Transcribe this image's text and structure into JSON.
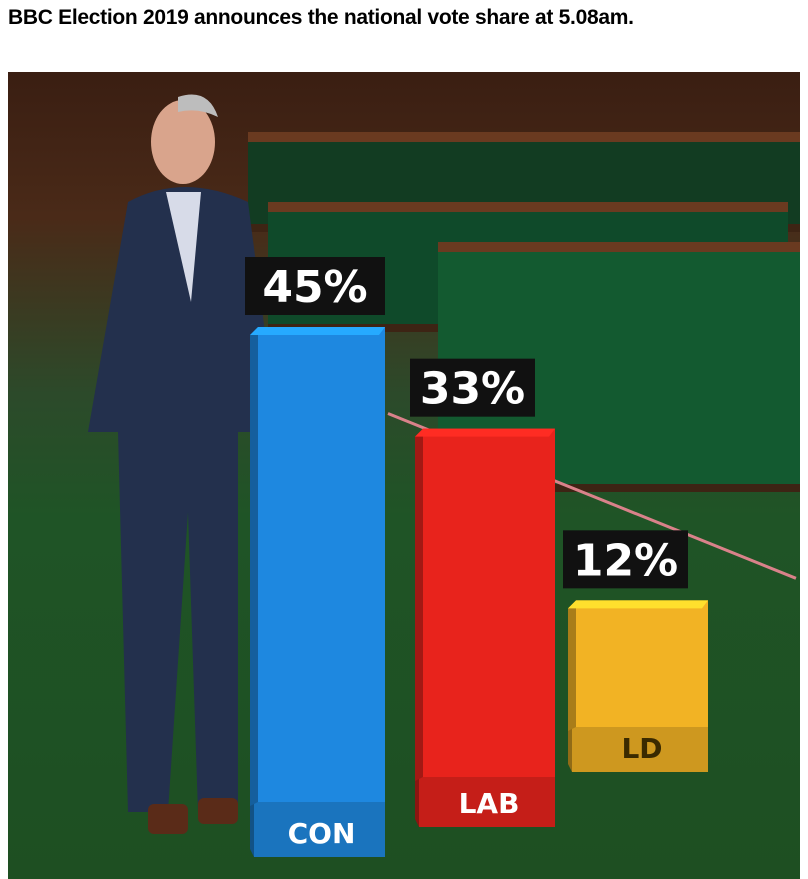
{
  "caption": "BBC Election 2019 announces the national vote share at 5.08am.",
  "chart_data": {
    "type": "bar",
    "categories": [
      "CON",
      "LAB",
      "LD"
    ],
    "values": [
      45,
      33,
      12
    ],
    "value_labels": [
      "45%",
      "33%",
      "12%"
    ],
    "colors": [
      "#1e88e0",
      "#e8231c",
      "#f2b324"
    ],
    "ylabel": "",
    "xlabel": "",
    "title": "",
    "ylim": [
      0,
      50
    ],
    "grid": false
  }
}
